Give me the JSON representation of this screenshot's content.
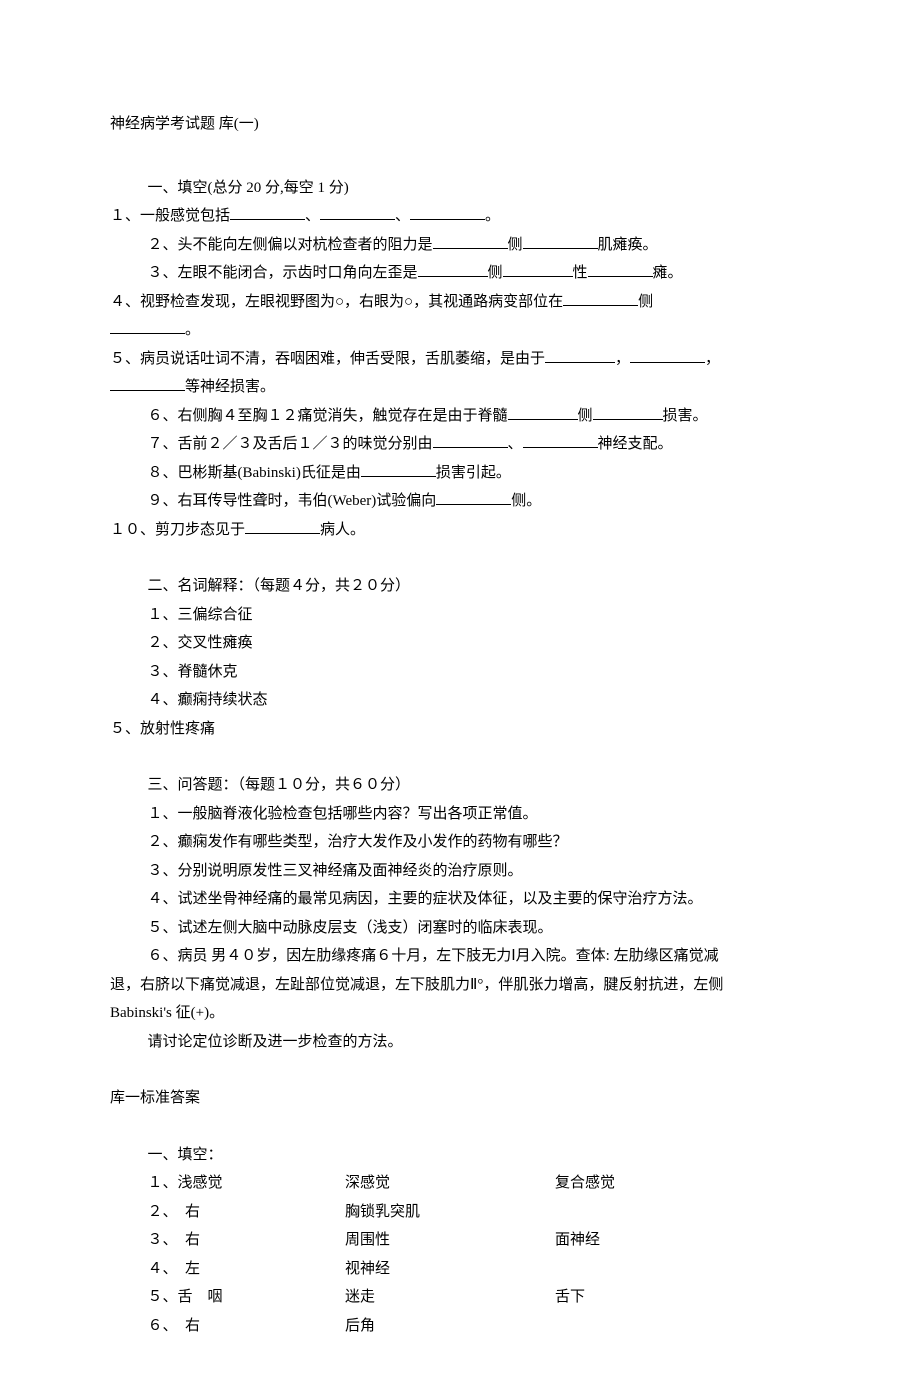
{
  "title": "神经病学考试题  库(一)",
  "section1": {
    "header": "一、填空(总分 20 分,每空 1 分)",
    "q1_a": "１、一般感觉包括",
    "q1_b": "、",
    "q1_c": "、",
    "q1_d": "。",
    "q2_a": "２、头不能向左侧偏以对杭检查者的阻力是",
    "q2_b": "侧",
    "q2_c": "肌瘫痪。",
    "q3_a": "３、左眼不能闭合，示齿时口角向左歪是",
    "q3_b": "侧",
    "q3_c": "性",
    "q3_d": "瘫。",
    "q4_a": "４、视野检查发现，左眼视野图为○，右眼为○，其视通路病变部位在",
    "q4_b": "侧",
    "q4_c": "。",
    "q5_a": "５、病员说话吐词不清，吞咽困难，伸舌受限，舌肌萎缩，是由于",
    "q5_b": "，",
    "q5_c": "，",
    "q5_d": "等神经损害。",
    "q6_a": "６、右侧胸４至胸１２痛觉消失，触觉存在是由于脊髓",
    "q6_b": "侧",
    "q6_c": "损害。",
    "q7_a": "７、舌前２／３及舌后１／３的味觉分别由",
    "q7_b": "、",
    "q7_c": "神经支配。",
    "q8_a": "８、巴彬斯基(Babinski)氏征是由",
    "q8_b": "损害引起。",
    "q9_a": "９、右耳传导性聋时，韦伯(Weber)试验偏向",
    "q9_b": "侧。",
    "q10_a": "１０、剪刀步态见于",
    "q10_b": "病人。"
  },
  "section2": {
    "header": "二、名词解释：（每题４分，共２０分）",
    "items": [
      "１、三偏综合征",
      "２、交叉性瘫痪",
      "３、脊髓休克",
      "４、癫痫持续状态",
      "５、放射性疼痛"
    ]
  },
  "section3": {
    "header": "三、问答题：（每题１０分，共６０分）",
    "items": [
      "１、一般脑脊液化验检查包括哪些内容？写出各项正常值。",
      "２、癫痫发作有哪些类型，治疗大发作及小发作的药物有哪些？",
      "３、分别说明原发性三叉神经痛及面神经炎的治疗原则。",
      "４、试述坐骨神经痛的最常见病因，主要的症状及体征，以及主要的保守治疗方法。",
      "５、试述左侧大脑中动脉皮层支（浅支）闭塞时的临床表现。"
    ],
    "q6_line1": "６、病员   男４０岁，因左肋缘疼痛６十月，左下肢无力Ⅰ月入院。查体: 左肋缘区痛觉减",
    "q6_line2": "退，右脐以下痛觉减退，左趾部位觉减退，左下肢肌力Ⅱ°，伴肌张力增高，腱反射抗进，左侧",
    "q6_line3": "Babinski's 征(+)。",
    "q6_line4": "请讨论定位诊断及进一步检查的方法。"
  },
  "answer_header": "库一标准答案",
  "answers": {
    "header": "一、填空：",
    "rows": [
      {
        "c1": "１、浅感觉",
        "c2": "深感觉",
        "c3": "复合感觉"
      },
      {
        "c1": "２、　右",
        "c2": "胸锁乳突肌",
        "c3": ""
      },
      {
        "c1": "３、　右",
        "c2": "周围性",
        "c3": "面神经"
      },
      {
        "c1": "４、　左",
        "c2": "视神经",
        "c3": ""
      },
      {
        "c1": "５、舌　咽",
        "c2": "迷走",
        "c3": "舌下"
      },
      {
        "c1": "６、　右",
        "c2": "后角",
        "c3": ""
      }
    ]
  }
}
